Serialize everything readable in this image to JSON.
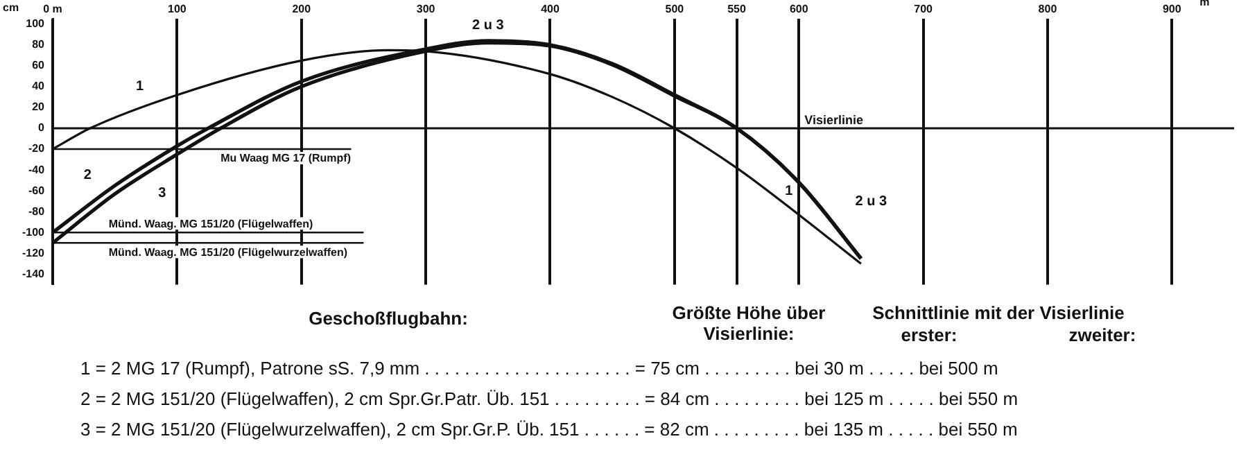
{
  "chart_data": {
    "type": "line",
    "xlabel": "m",
    "ylabel": "cm",
    "xlim": [
      0,
      950
    ],
    "ylim": [
      -150,
      105
    ],
    "xticks": [
      {
        "value": 0,
        "label": "0 m"
      },
      100,
      200,
      300,
      400,
      500,
      550,
      600,
      700,
      800,
      900
    ],
    "yticks": [
      100,
      80,
      60,
      40,
      20,
      0,
      -20,
      -40,
      -60,
      -80,
      -100,
      -120,
      -140
    ],
    "grid": "x",
    "legend": false,
    "marker": "none",
    "line_style": "solid",
    "series": [
      {
        "color": "#111111",
        "x": [
          0,
          30,
          100,
          200,
          270,
          300,
          400,
          450,
          500,
          550,
          600,
          650
        ],
        "values": [
          -20,
          0,
          32,
          65,
          75,
          74,
          52,
          30,
          0,
          -38,
          -83,
          -130
        ]
      },
      {
        "color": "#111111",
        "x": [
          0,
          50,
          100,
          125,
          200,
          300,
          350,
          400,
          450,
          500,
          550,
          600,
          650
        ],
        "values": [
          -100,
          -55,
          -17,
          0,
          45,
          76,
          84,
          80,
          62,
          32,
          0,
          -52,
          -125
        ]
      },
      {
        "color": "#111111",
        "x": [
          0,
          50,
          100,
          135,
          200,
          300,
          350,
          400,
          450,
          500,
          550,
          600,
          650
        ],
        "values": [
          -110,
          -63,
          -25,
          0,
          40,
          74,
          82,
          79,
          61,
          31,
          0,
          -52,
          -125
        ]
      },
      {
        "name": "Mu Waag MG 17 (Rumpf)",
        "color": "#111111",
        "x": [
          0,
          240
        ],
        "values": [
          -20,
          -20
        ]
      },
      {
        "name": "Münd. Waag. MG 151/20 (Flügelwaffen)",
        "color": "#111111",
        "x": [
          0,
          250
        ],
        "values": [
          -100,
          -100
        ]
      },
      {
        "name": "Münd. Waag. MG 151/20 (Flügelwurzelwaffen)",
        "color": "#111111",
        "x": [
          0,
          250
        ],
        "values": [
          -110,
          -110
        ]
      }
    ],
    "ref_lines": [
      {
        "axis": "y",
        "value": 0,
        "label": "Visierlinie",
        "color": "#111111"
      }
    ],
    "annotations": [
      "1",
      "2",
      "3",
      "2 u 3",
      "1",
      "2 u 3",
      "Geschoßflugbahn:",
      "Größte Höhe über Visierlinie:",
      "Schnittlinie mit der Visierlinie",
      "erster:",
      "zweiter:",
      "1 = 2 MG 17 (Rumpf), Patrone sS. 7,9 mm . . . . . . . . . . . . . . . . . . . . . = 75 cm . . . . . . . . . bei 30 m . . . . . bei 500 m",
      "2 = 2 MG 151/20 (Flügelwaffen), 2 cm Spr.Gr.Patr. Üb. 151 . . . . . . . . . = 84 cm . . . . . . . . . bei 125 m . . . . . bei 550 m",
      "3 = 2 MG 151/20 (Flügelwurzelwaffen), 2 cm Spr.Gr.P. Üb. 151 . . . . . . = 82 cm . . . . . . . . . bei 135 m . . . . . bei 550 m"
    ]
  }
}
